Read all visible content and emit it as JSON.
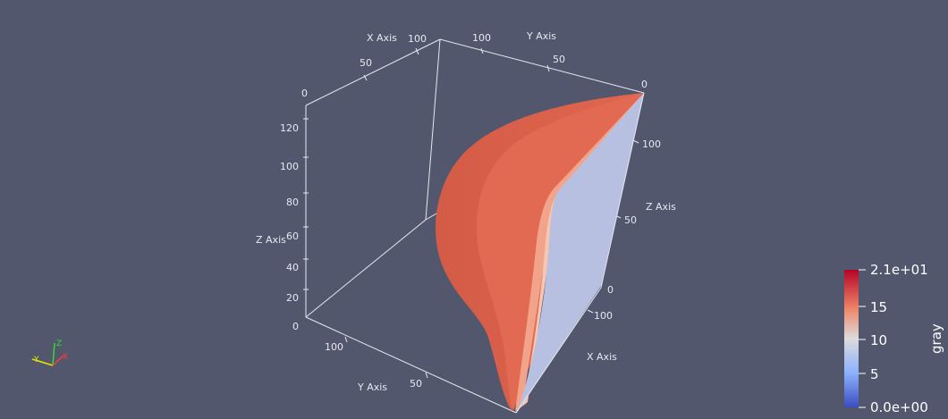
{
  "scene": {
    "background": "#52576e",
    "surface_colors": {
      "outer": "#d9604a",
      "mid": "#e26a52",
      "inner_band": "#f2a48a",
      "highlight": "#f7c6b2",
      "face": "#b8c0e2"
    }
  },
  "axes": {
    "x_title": "X Axis",
    "y_title": "Y Axis",
    "z_title": "Z Axis",
    "x_top_ticks": [
      "0",
      "50",
      "100"
    ],
    "y_top_ticks": [
      "100",
      "50",
      "0"
    ],
    "z_left_ticks": [
      "0",
      "20",
      "40",
      "60",
      "80",
      "100",
      "120"
    ],
    "z_right_ticks": [
      "0",
      "50",
      "100"
    ],
    "x_bottom_ticks": [
      "100",
      "0"
    ],
    "y_bottom_ticks": [
      "100",
      "50",
      "0"
    ]
  },
  "colorbar": {
    "title": "gray",
    "labels": [
      "2.1e+01",
      "15",
      "10",
      "5",
      "0.0e+00"
    ],
    "colors": {
      "top": "#b40426",
      "upper": "#ee8468",
      "middle": "#dddcdc",
      "lower": "#8db0fe",
      "bottom": "#3b4cc0"
    }
  },
  "orientation": {
    "x_label": "X",
    "y_label": "Y",
    "z_label": "Z",
    "x_color": "#ff3b3b",
    "y_color": "#e6e600",
    "z_color": "#33dd33"
  }
}
